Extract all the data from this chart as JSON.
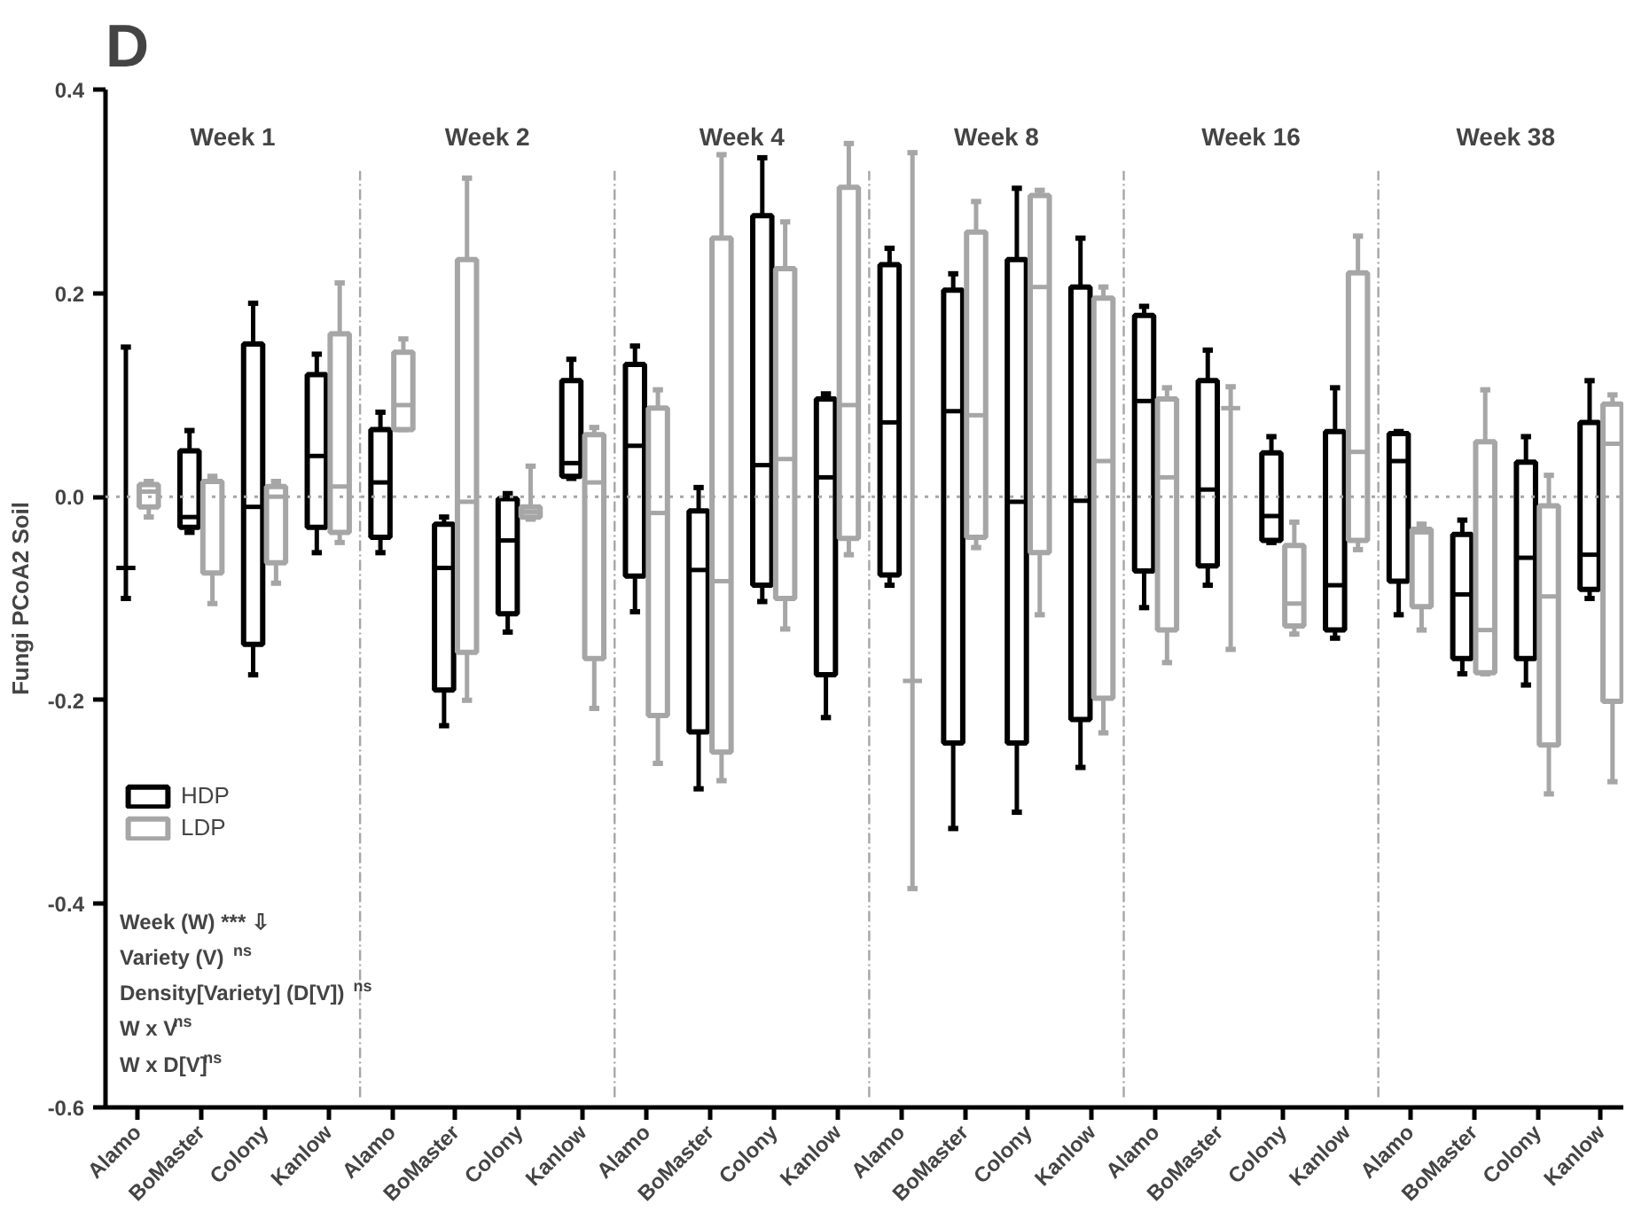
{
  "chart_data": {
    "type": "box",
    "title": "D",
    "ylabel": "Fungi PCoA2 Soil",
    "categories": [
      "Alamo",
      "BoMaster",
      "Colony",
      "Kanlow",
      "Alamo",
      "BoMaster",
      "Colony",
      "Kanlow",
      "Alamo",
      "BoMaster",
      "Colony",
      "Kanlow",
      "Alamo",
      "BoMaster",
      "Colony",
      "Kanlow",
      "Alamo",
      "BoMaster",
      "Colony",
      "Kanlow",
      "Alamo",
      "BoMaster",
      "Colony",
      "Kanlow"
    ],
    "ylim": [
      -0.6,
      0.4
    ],
    "yticks": [
      {
        "value": -0.6,
        "label": "-0.6"
      },
      {
        "value": -0.4,
        "label": "-0.4"
      },
      {
        "value": -0.2,
        "label": "-0.2"
      },
      {
        "value": 0,
        "label": "0.0"
      },
      {
        "value": 0.2,
        "label": "0.2"
      },
      {
        "value": 0.4,
        "label": "0.4"
      }
    ],
    "grid": false,
    "legend": "bottom left",
    "ref_lines": [
      {
        "axis": "y",
        "value": 0,
        "color": "#a6a6a6",
        "line_style": "dotted"
      }
    ],
    "annotations": [
      "Week 1",
      "Week 2",
      "Week 4",
      "Week 8",
      "Week 16",
      "Week 38",
      "Week (W) *** ⇩",
      "Variety (V)$^{ns}$",
      "Density[Variety] (D[V])$^{ns}$",
      "W x V$^{ns}$",
      "W x D[V]$^{ns}$"
    ],
    "series": [
      {
        "name": "HDP",
        "color": "#000000",
        "boxes": [
          {
            "low": -0.1,
            "q1": -0.07,
            "median": -0.07,
            "q3": -0.07,
            "high": 0.147
          },
          {
            "low": -0.035,
            "q1": -0.03,
            "median": -0.02,
            "q3": 0.045,
            "high": 0.065
          },
          {
            "low": -0.175,
            "q1": -0.145,
            "median": -0.01,
            "q3": 0.15,
            "high": 0.19
          },
          {
            "low": -0.055,
            "q1": -0.03,
            "median": 0.04,
            "q3": 0.12,
            "high": 0.14
          },
          {
            "low": -0.055,
            "q1": -0.04,
            "median": 0.014,
            "q3": 0.066,
            "high": 0.083
          },
          {
            "low": -0.225,
            "q1": -0.19,
            "median": -0.07,
            "q3": -0.027,
            "high": -0.02
          },
          {
            "low": -0.133,
            "q1": -0.115,
            "median": -0.043,
            "q3": -0.002,
            "high": 0.003
          },
          {
            "low": 0.018,
            "q1": 0.02,
            "median": 0.033,
            "q3": 0.114,
            "high": 0.135
          },
          {
            "low": -0.113,
            "q1": -0.078,
            "median": 0.05,
            "q3": 0.13,
            "high": 0.148
          },
          {
            "low": -0.287,
            "q1": -0.231,
            "median": -0.072,
            "q3": -0.014,
            "high": 0.009
          },
          {
            "low": -0.103,
            "q1": -0.087,
            "median": 0.031,
            "q3": 0.276,
            "high": 0.333
          },
          {
            "low": -0.217,
            "q1": -0.175,
            "median": 0.019,
            "q3": 0.096,
            "high": 0.101
          },
          {
            "low": -0.087,
            "q1": -0.077,
            "median": 0.073,
            "q3": 0.228,
            "high": 0.244
          },
          {
            "low": -0.326,
            "q1": -0.242,
            "median": 0.084,
            "q3": 0.203,
            "high": 0.219
          },
          {
            "low": -0.31,
            "q1": -0.242,
            "median": -0.005,
            "q3": 0.233,
            "high": 0.303
          },
          {
            "low": -0.266,
            "q1": -0.219,
            "median": -0.004,
            "q3": 0.206,
            "high": 0.254
          },
          {
            "low": -0.109,
            "q1": -0.073,
            "median": 0.094,
            "q3": 0.178,
            "high": 0.187
          },
          {
            "low": -0.087,
            "q1": -0.068,
            "median": 0.007,
            "q3": 0.114,
            "high": 0.144
          },
          {
            "low": -0.045,
            "q1": -0.043,
            "median": -0.019,
            "q3": 0.043,
            "high": 0.059
          },
          {
            "low": -0.139,
            "q1": -0.131,
            "median": -0.087,
            "q3": 0.064,
            "high": 0.107
          },
          {
            "low": -0.116,
            "q1": -0.083,
            "median": 0.035,
            "q3": 0.062,
            "high": 0.064
          },
          {
            "low": -0.174,
            "q1": -0.159,
            "median": -0.096,
            "q3": -0.037,
            "high": -0.023
          },
          {
            "low": -0.185,
            "q1": -0.159,
            "median": -0.06,
            "q3": 0.034,
            "high": 0.059
          },
          {
            "low": -0.1,
            "q1": -0.091,
            "median": -0.057,
            "q3": 0.073,
            "high": 0.114
          }
        ]
      },
      {
        "name": "LDP",
        "color": "#a6a6a6",
        "boxes": [
          {
            "low": -0.02,
            "q1": -0.01,
            "median": 0.005,
            "q3": 0.012,
            "high": 0.015
          },
          {
            "low": -0.105,
            "q1": -0.075,
            "median": 0.015,
            "q3": 0.015,
            "high": 0.02
          },
          {
            "low": -0.085,
            "q1": -0.065,
            "median": 0.0,
            "q3": 0.01,
            "high": 0.015
          },
          {
            "low": -0.045,
            "q1": -0.035,
            "median": 0.01,
            "q3": 0.16,
            "high": 0.21
          },
          {
            "low": 0.066,
            "q1": 0.066,
            "median": 0.09,
            "q3": 0.142,
            "high": 0.155
          },
          {
            "low": -0.2,
            "q1": -0.153,
            "median": -0.005,
            "q3": 0.233,
            "high": 0.313
          },
          {
            "low": -0.022,
            "q1": -0.02,
            "median": -0.015,
            "q3": -0.01,
            "high": 0.03
          },
          {
            "low": -0.208,
            "q1": -0.159,
            "median": 0.014,
            "q3": 0.061,
            "high": 0.068
          },
          {
            "low": -0.262,
            "q1": -0.215,
            "median": -0.016,
            "q3": 0.087,
            "high": 0.105
          },
          {
            "low": -0.279,
            "q1": -0.251,
            "median": -0.083,
            "q3": 0.254,
            "high": 0.336
          },
          {
            "low": -0.13,
            "q1": -0.1,
            "median": 0.037,
            "q3": 0.224,
            "high": 0.27
          },
          {
            "low": -0.057,
            "q1": -0.041,
            "median": 0.09,
            "q3": 0.304,
            "high": 0.347
          },
          {
            "low": -0.385,
            "q1": -0.181,
            "median": -0.181,
            "q3": -0.181,
            "high": 0.338
          },
          {
            "low": -0.05,
            "q1": -0.04,
            "median": 0.08,
            "q3": 0.26,
            "high": 0.29
          },
          {
            "low": -0.116,
            "q1": -0.055,
            "median": 0.206,
            "q3": 0.296,
            "high": 0.301
          },
          {
            "low": -0.232,
            "q1": -0.198,
            "median": 0.035,
            "q3": 0.195,
            "high": 0.206
          },
          {
            "low": -0.163,
            "q1": -0.131,
            "median": 0.019,
            "q3": 0.096,
            "high": 0.107
          },
          {
            "low": -0.15,
            "q1": 0.087,
            "median": 0.087,
            "q3": 0.087,
            "high": 0.108
          },
          {
            "low": -0.135,
            "q1": -0.127,
            "median": -0.105,
            "q3": -0.048,
            "high": -0.025
          },
          {
            "low": -0.052,
            "q1": -0.043,
            "median": 0.044,
            "q3": 0.22,
            "high": 0.256
          },
          {
            "low": -0.131,
            "q1": -0.108,
            "median": -0.035,
            "q3": -0.032,
            "high": -0.027
          },
          {
            "low": -0.174,
            "q1": -0.173,
            "median": -0.131,
            "q3": 0.054,
            "high": 0.105
          },
          {
            "low": -0.292,
            "q1": -0.244,
            "median": -0.098,
            "q3": -0.009,
            "high": 0.021
          },
          {
            "low": -0.28,
            "q1": -0.201,
            "median": 0.052,
            "q3": 0.091,
            "high": 0.1
          }
        ]
      }
    ]
  }
}
